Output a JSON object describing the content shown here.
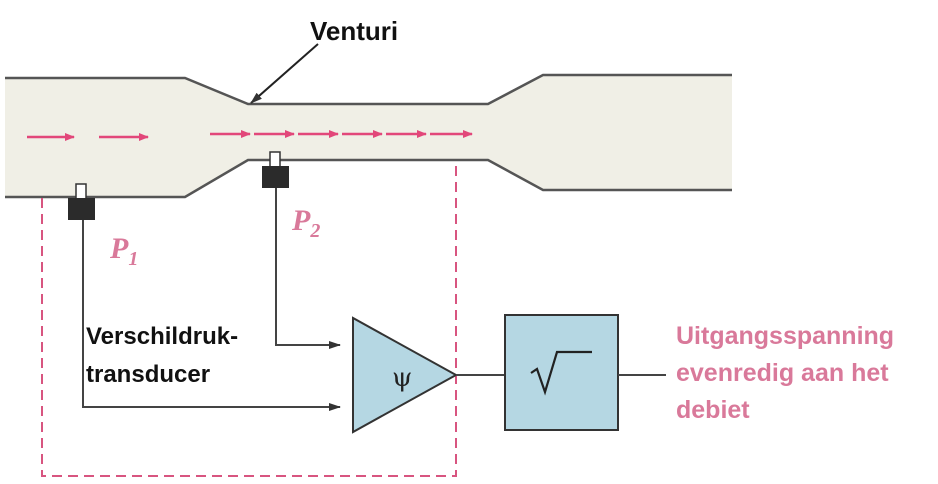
{
  "labels": {
    "venturi": "Venturi",
    "p1": "P",
    "p1_sub": "1",
    "p2": "P",
    "p2_sub": "2",
    "transducer_line1": "Verschildruk-",
    "transducer_line2": "transducer",
    "amplifier_symbol": "ψ",
    "sqrt_symbol": "√",
    "output_line1": "Uitgangsspanning",
    "output_line2": "evenredig aan het",
    "output_line3": "debiet"
  },
  "colors": {
    "pipe_fill": "#f0efe6",
    "pipe_stroke": "#555555",
    "flow_arrow": "#e2477a",
    "label_pink": "#d9799a",
    "block_fill": "#b5d7e3",
    "tap_fill": "#2b2b2b",
    "dashed_line": "#d85580"
  }
}
